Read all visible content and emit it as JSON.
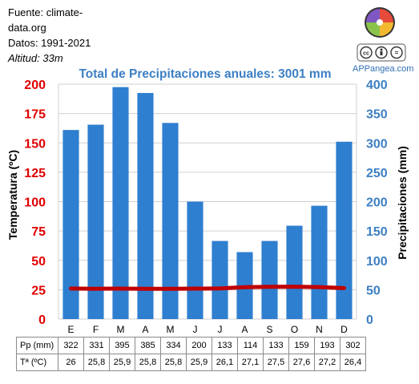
{
  "source": {
    "line1": "Fuente: climate-",
    "line2": "data.org",
    "line3": "Datos: 1991-2021",
    "altitude": "Altitud: 33m"
  },
  "brand": "APPangea.com",
  "colors": {
    "bar": "#2f7fd0",
    "temp_line": "#c00000",
    "left_axis": "#e00000",
    "right_axis": "#3d7fc4",
    "title": "#3d7fc4"
  },
  "icons": [
    "appangea-logo-icon",
    "cc-license-icon"
  ],
  "table": {
    "row1_label": "Pp (mm)",
    "row2_label": "Tª (ºC)",
    "pp": [
      "322",
      "331",
      "395",
      "385",
      "334",
      "200",
      "133",
      "114",
      "133",
      "159",
      "193",
      "302"
    ],
    "temp": [
      "26",
      "25,8",
      "25,9",
      "25,8",
      "25,8",
      "25,9",
      "26,1",
      "27,1",
      "27,5",
      "27,6",
      "27,2",
      "26,4"
    ]
  },
  "chart_data": {
    "type": "bar",
    "title": "Total de Precipitaciones anuales: 3001 mm",
    "categories": [
      "E",
      "F",
      "M",
      "A",
      "M",
      "J",
      "J",
      "A",
      "S",
      "O",
      "N",
      "D"
    ],
    "series": [
      {
        "name": "Precipitaciones (mm)",
        "type": "bar",
        "axis": "right",
        "values": [
          322,
          331,
          395,
          385,
          334,
          200,
          133,
          114,
          133,
          159,
          193,
          302
        ]
      },
      {
        "name": "Temperatura (ºC)",
        "type": "line",
        "axis": "left",
        "values": [
          26,
          25.8,
          25.9,
          25.8,
          25.8,
          25.9,
          26.1,
          27.1,
          27.5,
          27.6,
          27.2,
          26.4
        ]
      }
    ],
    "ylabel_left": "Temperatura (ºC)",
    "ylabel_right": "Precipitaciones (mm)",
    "ylim_left": [
      0,
      200
    ],
    "ylim_right": [
      0,
      400
    ],
    "yticks_left": [
      "0",
      "25",
      "50",
      "75",
      "100",
      "125",
      "150",
      "175",
      "200"
    ],
    "yticks_right": [
      "0",
      "50",
      "100",
      "150",
      "200",
      "250",
      "300",
      "350",
      "400"
    ],
    "grid": "horizontal"
  }
}
